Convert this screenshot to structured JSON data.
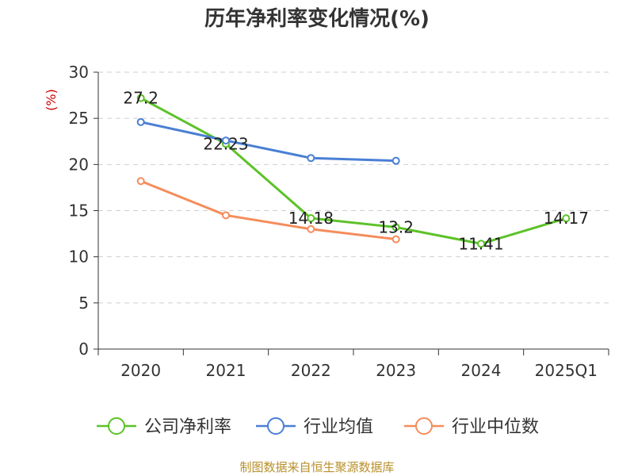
{
  "chart_data": {
    "type": "line",
    "title": "历年净利率变化情况(%)",
    "ylabel": "(%)",
    "xlabel": "",
    "categories": [
      "2020",
      "2021",
      "2022",
      "2023",
      "2024",
      "2025Q1"
    ],
    "ylim": [
      0,
      30
    ],
    "yticks": [
      0,
      5,
      10,
      15,
      20,
      25,
      30
    ],
    "grid": true,
    "legend_position": "bottom",
    "series": [
      {
        "name": "公司净利率",
        "color": "#5cc228",
        "values": [
          27.2,
          22.23,
          14.18,
          13.2,
          11.41,
          14.17
        ],
        "labels": [
          "27.2",
          "22.23",
          "14.18",
          "13.2",
          "11.41",
          "14.17"
        ]
      },
      {
        "name": "行业均值",
        "color": "#4a7fd4",
        "values": [
          24.6,
          22.6,
          20.7,
          20.4,
          null,
          null
        ]
      },
      {
        "name": "行业中位数",
        "color": "#f58c5b",
        "values": [
          18.2,
          14.5,
          13.0,
          11.9,
          null,
          null
        ]
      }
    ]
  },
  "source": "制图数据来自恒生聚源数据库"
}
